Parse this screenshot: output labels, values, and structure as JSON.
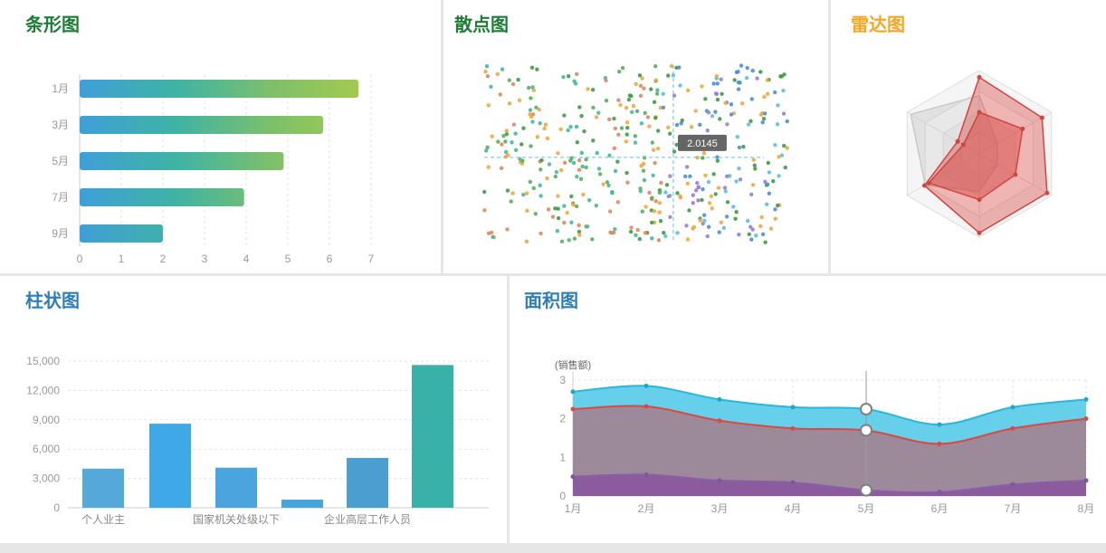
{
  "page": {
    "bg": "#e6e6e6",
    "panel_bg": "#ffffff"
  },
  "panels": [
    {
      "id": "bar",
      "title": "条形图",
      "title_color": "#1b7e34"
    },
    {
      "id": "scatter",
      "title": "散点图",
      "title_color": "#1b7e34"
    },
    {
      "id": "radar",
      "title": "雷达图",
      "title_color": "#f5a623"
    },
    {
      "id": "column",
      "title": "柱状图",
      "title_color": "#2e7fb8"
    },
    {
      "id": "area",
      "title": "面积图",
      "title_color": "#2e7fb8"
    }
  ],
  "chart_data": [
    {
      "id": "bar",
      "type": "bar",
      "orientation": "horizontal",
      "title": "条形图",
      "categories": [
        "1月",
        "3月",
        "5月",
        "7月",
        "9月"
      ],
      "values": [
        6.7,
        5.85,
        4.9,
        3.95,
        2.0
      ],
      "xticks": [
        0,
        1,
        2,
        3,
        4,
        5,
        6,
        7
      ],
      "xlim": [
        0,
        7
      ],
      "gradient": [
        "#3f9fd8",
        "#3fb3a4",
        "#7ec06a",
        "#a8cb4d"
      ],
      "axis_label_color": "#999999",
      "grid": true
    },
    {
      "id": "scatter",
      "type": "scatter",
      "title": "散点图",
      "point_count": 430,
      "seed": 7,
      "x_range": [
        0,
        4
      ],
      "y_range": [
        0,
        3
      ],
      "left_colors": [
        "#3d9c45",
        "#55b05a",
        "#f0a73e",
        "#46b89c",
        "#e0875e"
      ],
      "right_colors": [
        "#4a8fd4",
        "#9b7ed0",
        "#f0a73e",
        "#3d9c45",
        "#5bc0de"
      ],
      "left_fraction": 0.58,
      "crosshair": {
        "x_frac": 0.62,
        "y_frac": 0.52,
        "tooltip": "2.0145",
        "line_color": "#5fc3d6",
        "tooltip_bg": "#666666",
        "tooltip_color": "#ffffff"
      }
    },
    {
      "id": "radar",
      "type": "radar",
      "title": "雷达图",
      "indicator_count": 6,
      "levels": 4,
      "grid_color": "#dddddd",
      "series": [
        {
          "name": "gray-background",
          "values": [
            0.7,
            0.25,
            0.25,
            0.45,
            0.75,
            0.95
          ],
          "fill": "rgba(190,190,190,0.35)",
          "stroke": "#c9c9c9",
          "dots": false
        },
        {
          "name": "red-outer",
          "values": [
            0.92,
            0.87,
            0.94,
            0.95,
            0.76,
            0.3
          ],
          "fill": "rgba(214,69,65,0.4)",
          "stroke": "#d0453f",
          "dots": true
        },
        {
          "name": "red-inner",
          "values": [
            0.5,
            0.6,
            0.5,
            0.55,
            0.7,
            0.22
          ],
          "fill": "rgba(214,69,65,0.45)",
          "stroke": "#d0453f",
          "dots": true
        }
      ]
    },
    {
      "id": "column",
      "type": "bar",
      "orientation": "vertical",
      "title": "柱状图",
      "categories": [
        "个人业主",
        "",
        "国家机关处级以下",
        "",
        "企业高层工作人员",
        ""
      ],
      "values": [
        4000,
        8600,
        4100,
        830,
        5100,
        14600
      ],
      "bar_colors": [
        "#55a8da",
        "#3fa8e6",
        "#4aa4dd",
        "#47a3dc",
        "#4a9fd0",
        "#38b2a8"
      ],
      "yticks": [
        "0",
        "3,000",
        "6,000",
        "9,000",
        "12,000",
        "15,000"
      ],
      "ylim": [
        0,
        15000
      ],
      "axis_label_color": "#888888"
    },
    {
      "id": "area",
      "type": "area",
      "title": "面积图",
      "ylabel": "(销售额)",
      "categories": [
        "1月",
        "2月",
        "3月",
        "4月",
        "5月",
        "6月",
        "7月",
        "8月"
      ],
      "yticks": [
        0,
        1,
        2,
        3
      ],
      "ylim": [
        0,
        3
      ],
      "series": [
        {
          "name": "cyan",
          "values": [
            2.7,
            2.85,
            2.5,
            2.3,
            2.25,
            1.85,
            2.3,
            2.5
          ],
          "fill": "#66cfe9",
          "stroke": "#29b7dc",
          "dot": "#1fa8ce"
        },
        {
          "name": "red",
          "values": [
            2.25,
            2.32,
            1.95,
            1.75,
            1.7,
            1.35,
            1.75,
            2.0
          ],
          "fill": "rgba(200,80,90,0.55)",
          "stroke": "#d84a42",
          "dot": "#d84a42"
        },
        {
          "name": "purple",
          "values": [
            0.5,
            0.55,
            0.4,
            0.35,
            0.15,
            0.1,
            0.3,
            0.4
          ],
          "fill": "rgba(130,60,160,0.6)",
          "stroke": "#8a5fa8",
          "dot": "#7d55a0"
        }
      ],
      "marker": {
        "index": 4,
        "line_color": "#9a9a9a",
        "point_fill": "#ffffff",
        "point_stroke": "#808080"
      }
    }
  ]
}
